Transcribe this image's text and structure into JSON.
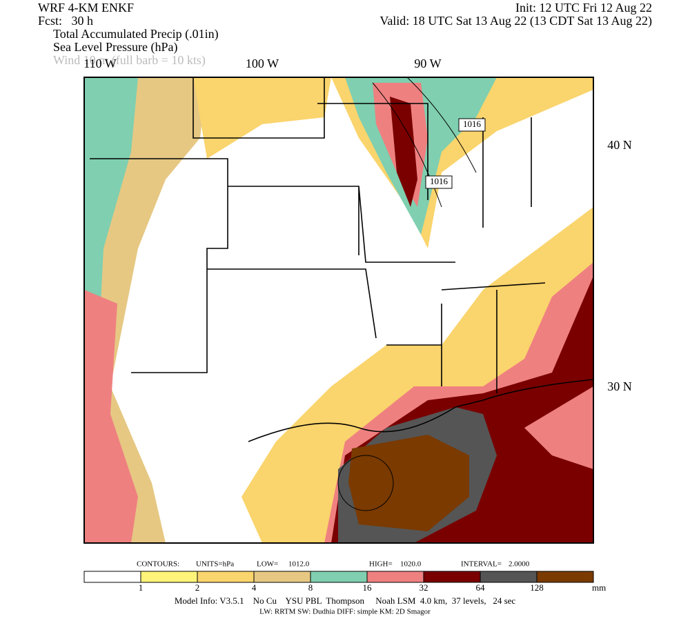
{
  "header": {
    "model": "WRF 4-KM ENKF",
    "forecast": "Fcst:   30 h",
    "init": "Init: 12 UTC Fri 12 Aug 22",
    "valid": "Valid: 18 UTC Sat 13 Aug 22 (13 CDT Sat 13 Aug 22)",
    "fields": [
      "Total Accumulated Precip (.01in)",
      "Sea Level Pressure (hPa)",
      "Wind 10 m (full barb = 10 kts)"
    ]
  },
  "map": {
    "lon_labels": [
      "110 W",
      "100 W",
      "90 W"
    ],
    "lat_labels": [
      "40 N",
      "30 N"
    ],
    "isobar_labels": [
      "1016",
      "1016"
    ]
  },
  "contour_info": [
    "CONTOURS:",
    "UNITS=hPa",
    "LOW=",
    "1012.0",
    "HIGH=",
    "1020.0",
    "INTERVAL=",
    "2.0000"
  ],
  "legend": {
    "colors": [
      "#ffffff",
      "#fff47a",
      "#fad46c",
      "#e6c883",
      "#7fcfb0",
      "#ef8080",
      "#7a0000",
      "#555555",
      "#7a3a00"
    ],
    "ticks": [
      "1",
      "2",
      "4",
      "8",
      "16",
      "32",
      "64",
      "128"
    ],
    "unit": "mm"
  },
  "footer": [
    "Model Info: V3.5.1    No Cu    YSU PBL  Thompson     Noah LSM  4.0 km,  37 levels,   24 sec",
    "LW: RRTM SW: Dudhia  DIFF: simple KM: 2D Smagor"
  ]
}
